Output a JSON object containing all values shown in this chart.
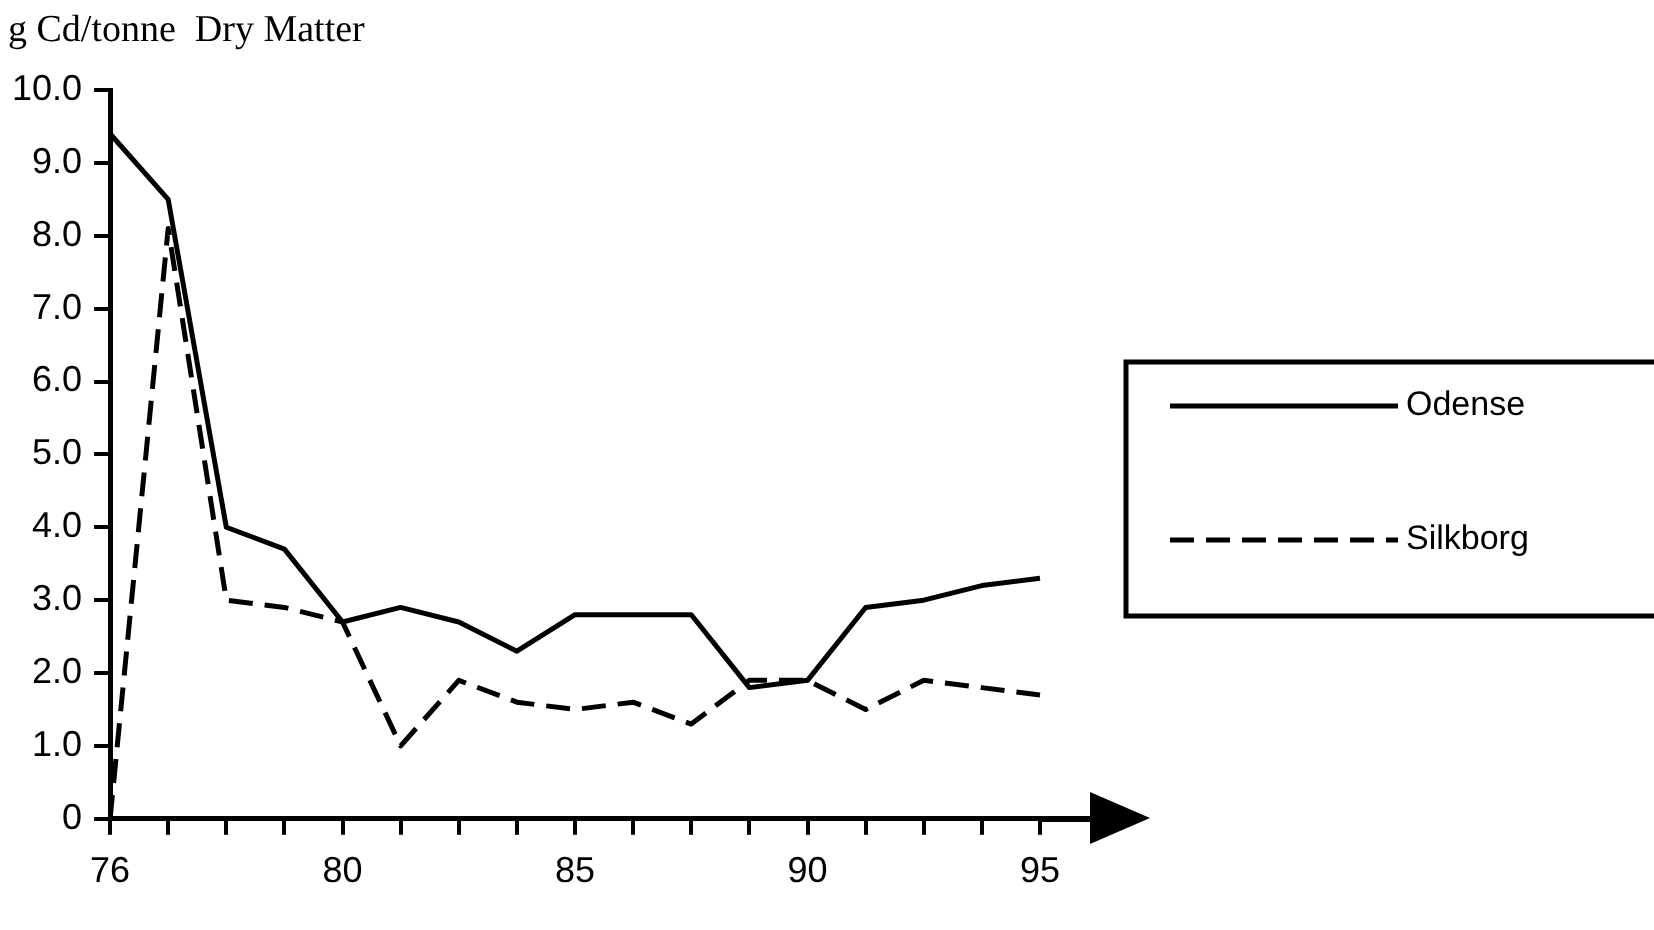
{
  "chart_data": {
    "type": "line",
    "ylabel": "g Cd/tonne  Dry Matter",
    "categories": [
      "76",
      null,
      null,
      null,
      "80",
      null,
      null,
      null,
      "85",
      null,
      null,
      null,
      "90",
      null,
      null,
      null,
      "95"
    ],
    "series": [
      {
        "name": "Odense",
        "color": "#000000",
        "line_style": "solid",
        "values": [
          9.4,
          8.5,
          4.0,
          3.7,
          2.7,
          2.9,
          2.7,
          2.3,
          2.8,
          2.8,
          2.8,
          1.8,
          1.9,
          2.9,
          3.0,
          3.2,
          3.3
        ]
      },
      {
        "name": "Silkborg",
        "color": "#000000",
        "line_style": "dashed",
        "values": [
          0,
          8.1,
          3.0,
          2.9,
          2.7,
          1.0,
          1.9,
          1.6,
          1.5,
          1.6,
          1.3,
          1.9,
          1.9,
          1.5,
          1.9,
          1.8,
          1.7
        ]
      }
    ],
    "ylim": [
      0,
      10
    ],
    "yticks": [
      0,
      {
        "value": 1,
        "label": "1.0"
      },
      {
        "value": 2,
        "label": "2.0"
      },
      {
        "value": 3,
        "label": "3.0"
      },
      {
        "value": 4,
        "label": "4.0"
      },
      {
        "value": 5,
        "label": "5.0"
      },
      {
        "value": 6,
        "label": "6.0"
      },
      {
        "value": 7,
        "label": "7.0"
      },
      {
        "value": 8,
        "label": "8.0"
      },
      {
        "value": 9,
        "label": "9.0"
      },
      {
        "value": 10,
        "label": "10.0"
      }
    ],
    "grid": false,
    "legend": "right",
    "marker": "none"
  }
}
